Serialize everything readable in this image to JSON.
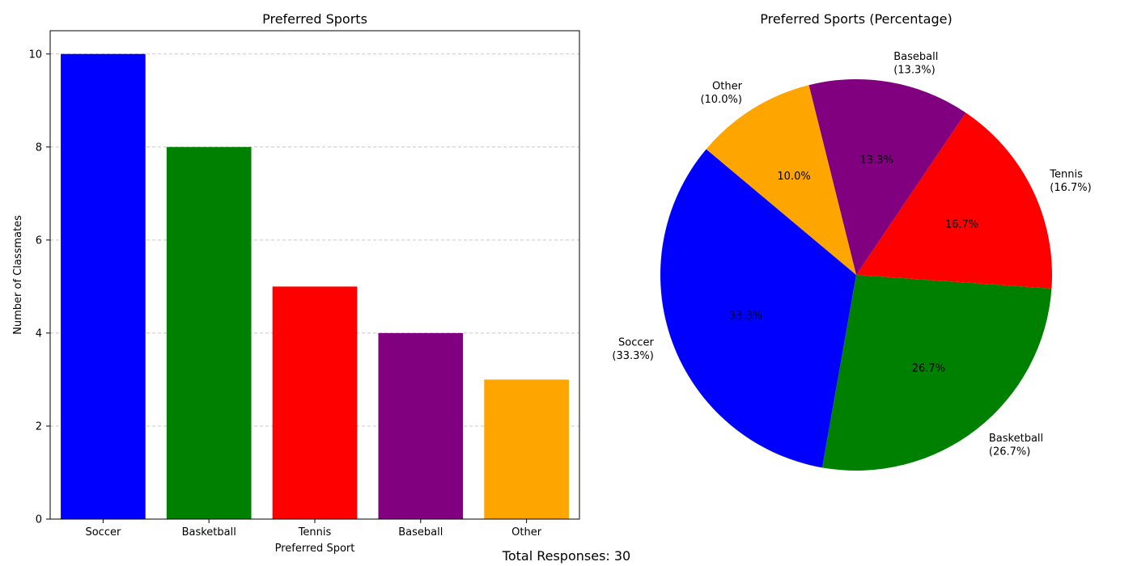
{
  "chart_data": [
    {
      "type": "bar",
      "title": "Preferred Sports",
      "xlabel": "Preferred Sport",
      "ylabel": "Number of Classmates",
      "categories": [
        "Soccer",
        "Basketball",
        "Tennis",
        "Baseball",
        "Other"
      ],
      "values": [
        10,
        8,
        5,
        4,
        3
      ],
      "colors": [
        "#0000ff",
        "#008000",
        "#ff0000",
        "#800080",
        "#ffa500"
      ],
      "ylim": [
        0,
        10.5
      ],
      "yticks": [
        0,
        2,
        4,
        6,
        8,
        10
      ],
      "grid": "y dashed"
    },
    {
      "type": "pie",
      "title": "Preferred Sports (Percentage)",
      "categories": [
        "Soccer",
        "Basketball",
        "Tennis",
        "Baseball",
        "Other"
      ],
      "values": [
        10,
        8,
        5,
        4,
        3
      ],
      "colors": [
        "#0000ff",
        "#008000",
        "#ff0000",
        "#800080",
        "#ffa500"
      ],
      "start_angle_deg": 140,
      "direction": "counterclockwise",
      "outer_labels": [
        "Soccer\n(33.3%)",
        "Basketball\n(26.7%)",
        "Tennis\n(16.7%)",
        "Baseball\n(13.3%)",
        "Other\n(10.0%)"
      ],
      "percent_labels": [
        "33.3%",
        "26.7%",
        "16.7%",
        "13.3%",
        "10.0%"
      ]
    }
  ],
  "footer": {
    "text": "Total Responses: 30"
  }
}
